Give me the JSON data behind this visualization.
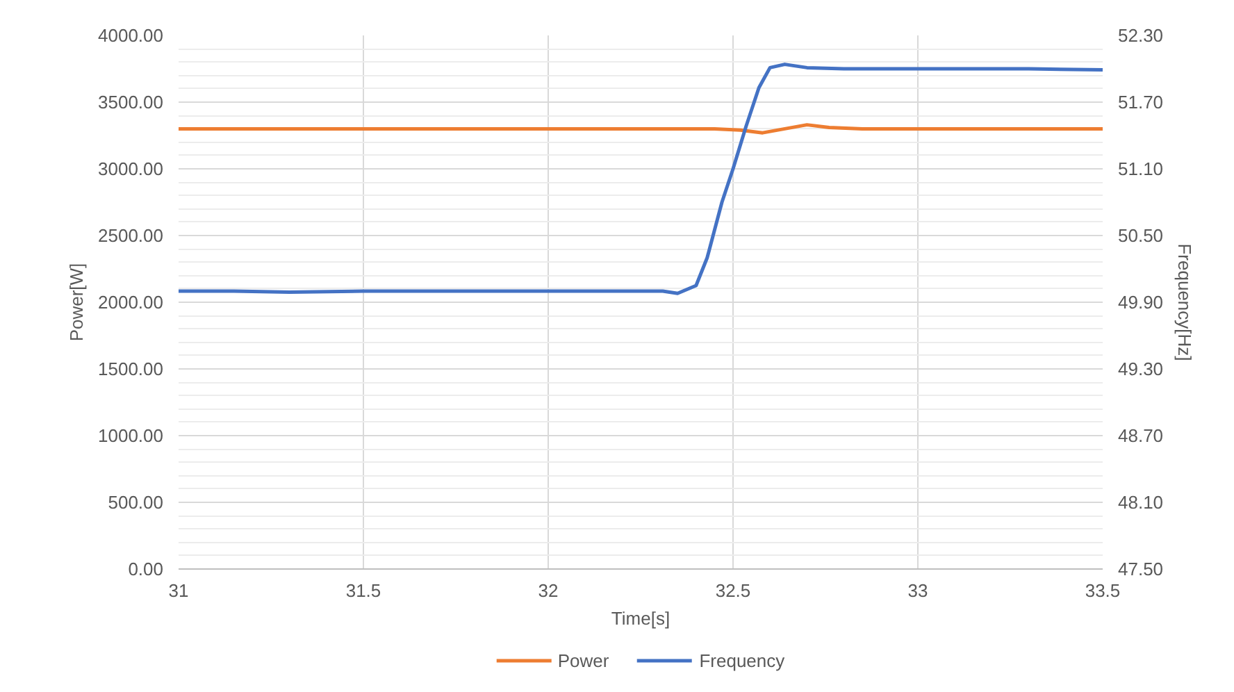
{
  "chart_data": {
    "type": "line",
    "xlabel": "Time[s]",
    "ylabel": "Power[W]",
    "y2label": "Frequency[Hz]",
    "xlim": [
      31,
      33.5
    ],
    "xticks": [
      31,
      31.5,
      32,
      32.5,
      33,
      33.5
    ],
    "ylim": [
      0,
      4000
    ],
    "yticks": [
      {
        "value": 0,
        "label": "0.00"
      },
      {
        "value": 500,
        "label": "500.00"
      },
      {
        "value": 1000,
        "label": "1000.00"
      },
      {
        "value": 1500,
        "label": "1500.00"
      },
      {
        "value": 2000,
        "label": "2000.00"
      },
      {
        "value": 2500,
        "label": "2500.00"
      },
      {
        "value": 3000,
        "label": "3000.00"
      },
      {
        "value": 3500,
        "label": "3500.00"
      },
      {
        "value": 4000,
        "label": "4000.00"
      }
    ],
    "y2lim": [
      47.5,
      52.3
    ],
    "y2ticks": [
      {
        "value": 47.5,
        "label": "47.50"
      },
      {
        "value": 48.1,
        "label": "48.10"
      },
      {
        "value": 48.7,
        "label": "48.70"
      },
      {
        "value": 49.3,
        "label": "49.30"
      },
      {
        "value": 49.9,
        "label": "49.90"
      },
      {
        "value": 50.5,
        "label": "50.50"
      },
      {
        "value": 51.1,
        "label": "51.10"
      },
      {
        "value": 51.7,
        "label": "51.70"
      },
      {
        "value": 52.3,
        "label": "52.30"
      }
    ],
    "grid": true,
    "legend": "bottom",
    "series": [
      {
        "name": "Power",
        "color": "#ed7d31",
        "x": [
          31,
          31.2,
          31.4,
          31.6,
          31.8,
          32,
          32.2,
          32.35,
          32.45,
          32.52,
          32.58,
          32.64,
          32.7,
          32.76,
          32.85,
          33,
          33.2,
          33.35,
          33.5
        ],
        "values": [
          3300,
          3300,
          3300,
          3300,
          3300,
          3300,
          3300,
          3300,
          3300,
          3290,
          3270,
          3300,
          3330,
          3310,
          3300,
          3300,
          3300,
          3300,
          3300
        ]
      },
      {
        "name": "Frequency",
        "color": "#4472c4",
        "axis": "y2",
        "x": [
          31,
          31.15,
          31.3,
          31.5,
          31.8,
          32,
          32.17,
          32.31,
          32.35,
          32.4,
          32.43,
          32.47,
          32.5,
          32.535,
          32.57,
          32.6,
          32.64,
          32.7,
          32.8,
          33,
          33.3,
          33.5
        ],
        "values": [
          50.0,
          50.0,
          49.99,
          50.0,
          50.0,
          50.0,
          50.0,
          50.0,
          49.98,
          50.05,
          50.3,
          50.8,
          51.1,
          51.48,
          51.83,
          52.01,
          52.04,
          52.01,
          52.0,
          52.0,
          52.0,
          51.99
        ]
      }
    ]
  }
}
